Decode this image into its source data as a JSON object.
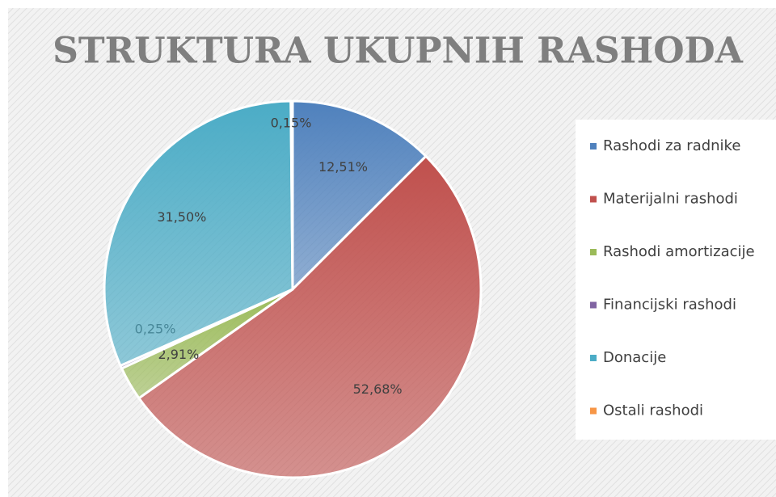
{
  "chart_data": {
    "type": "pie",
    "title": "STRUKTURA UKUPNIH RASHODA",
    "categories": [
      "Rashodi za radnike",
      "Materijalni rashodi",
      "Rashodi amortizacije",
      "Financijski rashodi",
      "Donacije",
      "Ostali rashodi"
    ],
    "values": [
      12.51,
      52.68,
      2.91,
      0.25,
      31.5,
      0.15
    ],
    "value_labels": [
      "12,51%",
      "52,68%",
      "2,91%",
      "0,25%",
      "31,50%",
      "0,15%"
    ],
    "colors": [
      "#4f81bd",
      "#c0504d",
      "#9bbb59",
      "#8064a2",
      "#4bacc6",
      "#f79646"
    ],
    "legend": "right"
  }
}
